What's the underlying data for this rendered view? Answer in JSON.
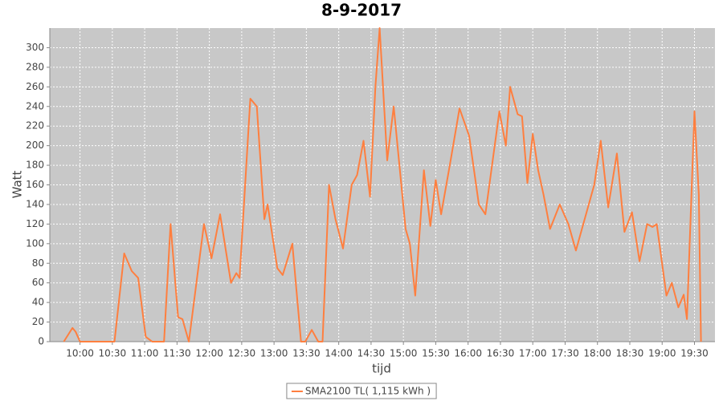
{
  "chart_data": {
    "type": "line",
    "title": "8-9-2017",
    "x_label": "tijd",
    "y_label": "Watt",
    "x": [
      "09:45",
      "09:53",
      "09:56",
      "10:00",
      "10:32",
      "10:41",
      "10:48",
      "10:54",
      "11:01",
      "11:07",
      "11:18",
      "11:24",
      "11:31",
      "11:35",
      "11:41",
      "11:55",
      "12:02",
      "12:10",
      "12:20",
      "12:25",
      "12:28",
      "12:38",
      "12:44",
      "12:51",
      "12:54",
      "13:03",
      "13:08",
      "13:17",
      "13:25",
      "13:29",
      "13:35",
      "13:41",
      "13:45",
      "13:51",
      "13:57",
      "14:04",
      "14:12",
      "14:17",
      "14:23",
      "14:29",
      "14:34",
      "14:38",
      "14:45",
      "14:51",
      "15:02",
      "15:06",
      "15:11",
      "15:19",
      "15:25",
      "15:30",
      "15:35",
      "15:43",
      "15:52",
      "16:01",
      "16:10",
      "16:16",
      "16:29",
      "16:35",
      "16:39",
      "16:46",
      "16:50",
      "16:55",
      "17:00",
      "17:05",
      "17:10",
      "17:16",
      "17:25",
      "17:33",
      "17:40",
      "17:57",
      "18:03",
      "18:10",
      "18:18",
      "18:25",
      "18:32",
      "18:39",
      "18:46",
      "18:51",
      "18:55",
      "19:04",
      "19:09",
      "19:15",
      "19:20",
      "19:23",
      "19:30",
      "19:34",
      "19:36"
    ],
    "series": [
      {
        "name": "SMA2100 TL( 1,115 kWh )",
        "color": "#ff7f3f",
        "values": [
          0,
          14,
          10,
          0,
          0,
          90,
          72,
          65,
          5,
          0,
          0,
          120,
          25,
          23,
          0,
          120,
          85,
          130,
          60,
          70,
          65,
          248,
          240,
          125,
          140,
          75,
          68,
          100,
          0,
          0,
          12,
          0,
          0,
          160,
          125,
          95,
          160,
          170,
          205,
          148,
          260,
          320,
          185,
          240,
          115,
          100,
          47,
          175,
          118,
          165,
          130,
          180,
          238,
          210,
          140,
          130,
          235,
          200,
          260,
          232,
          230,
          162,
          212,
          175,
          150,
          115,
          140,
          120,
          93,
          160,
          205,
          137,
          192,
          112,
          132,
          82,
          120,
          117,
          120,
          47,
          60,
          35,
          48,
          23,
          235,
          150,
          0
        ]
      }
    ],
    "xlim": [
      "09:32",
      "19:49"
    ],
    "xticks": [
      "10:00",
      "10:30",
      "11:00",
      "11:30",
      "12:00",
      "12:30",
      "13:00",
      "13:30",
      "14:00",
      "14:30",
      "15:00",
      "15:30",
      "16:00",
      "16:30",
      "17:00",
      "17:30",
      "18:00",
      "18:30",
      "19:00",
      "19:30"
    ],
    "ylim": [
      0,
      320
    ],
    "yticks": [
      0,
      20,
      40,
      60,
      80,
      100,
      120,
      140,
      160,
      180,
      200,
      220,
      240,
      260,
      280,
      300
    ],
    "grid": true
  }
}
